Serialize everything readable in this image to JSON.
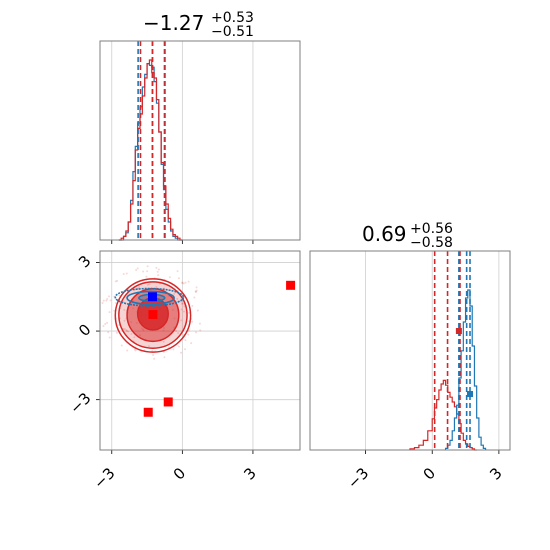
{
  "chart_data": {
    "type": "corner",
    "parameters": [
      "",
      ""
    ],
    "titles": [
      {
        "median": "−1.27",
        "plus": "+0.53",
        "minus": "−0.51"
      },
      {
        "median": "0.69",
        "plus": "+0.56",
        "minus": "−0.58"
      }
    ],
    "x_range": [
      -3.5,
      5.0
    ],
    "y_range": [
      -5.2,
      3.5
    ],
    "diag2_x_range": [
      -5.5,
      3.5
    ],
    "xticks": [
      -3,
      0,
      3
    ],
    "yticks": [
      -3,
      0,
      3
    ],
    "xtick_labels": [
      "−3",
      "0",
      "3"
    ],
    "ytick_labels": [
      "−3",
      "0",
      "3"
    ],
    "grid": true,
    "series": [
      {
        "name": "",
        "color": "#d62728"
      },
      {
        "name": "",
        "color": "#1f77b4"
      }
    ],
    "quantile_lines": {
      "param1": {
        "red": [
          -1.78,
          -0.74,
          -1.27
        ],
        "blue": [
          -1.88,
          -0.76,
          -1.27
        ]
      },
      "param2": {
        "red": [
          0.11,
          1.25,
          0.69
        ],
        "blue": [
          1.2,
          1.7,
          1.55
        ]
      }
    },
    "red_hist_param1": {
      "bins": [
        -2.7,
        -2.6,
        -2.5,
        -2.4,
        -2.3,
        -2.2,
        -2.1,
        -2.0,
        -1.9,
        -1.8,
        -1.7,
        -1.6,
        -1.5,
        -1.4,
        -1.3,
        -1.2,
        -1.1,
        -1.0,
        -0.9,
        -0.8,
        -0.7,
        -0.6,
        -0.5,
        -0.4,
        -0.3,
        -0.2,
        -0.1,
        0.0
      ],
      "counts": [
        0,
        0.01,
        0.02,
        0.05,
        0.1,
        0.2,
        0.33,
        0.5,
        0.62,
        0.7,
        0.8,
        0.9,
        0.98,
        1.0,
        0.93,
        0.9,
        0.78,
        0.6,
        0.43,
        0.3,
        0.2,
        0.12,
        0.06,
        0.03,
        0.02,
        0.01,
        0.0,
        0
      ]
    },
    "blue_hist_param1": {
      "bins": [
        -2.7,
        -2.6,
        -2.5,
        -2.4,
        -2.3,
        -2.2,
        -2.1,
        -2.0,
        -1.9,
        -1.8,
        -1.7,
        -1.6,
        -1.5,
        -1.4,
        -1.3,
        -1.2,
        -1.1,
        -1.0,
        -0.9,
        -0.8,
        -0.7,
        -0.6,
        -0.5,
        -0.4,
        -0.3,
        -0.2,
        -0.1,
        0.0
      ],
      "counts": [
        0,
        0.0,
        0.02,
        0.04,
        0.1,
        0.22,
        0.38,
        0.52,
        0.65,
        0.74,
        0.85,
        0.92,
        0.98,
        0.97,
        0.96,
        0.88,
        0.76,
        0.6,
        0.42,
        0.28,
        0.17,
        0.1,
        0.05,
        0.02,
        0.01,
        0.0,
        0,
        0
      ]
    },
    "red_hist_param2": {
      "bins": [
        -1.0,
        -0.8,
        -0.6,
        -0.4,
        -0.2,
        0.0,
        0.1,
        0.2,
        0.3,
        0.4,
        0.5,
        0.6,
        0.7,
        0.8,
        0.9,
        1.0,
        1.1,
        1.2,
        1.3,
        1.4,
        1.5,
        1.6,
        1.7,
        1.8,
        1.9,
        2.0
      ],
      "counts": [
        0.01,
        0.02,
        0.04,
        0.08,
        0.16,
        0.26,
        0.35,
        0.42,
        0.5,
        0.55,
        0.58,
        0.54,
        0.48,
        0.44,
        0.4,
        0.36,
        0.3,
        0.22,
        0.14,
        0.08,
        0.05,
        0.03,
        0.02,
        0.01,
        0.0,
        0
      ]
    },
    "blue_hist_param2": {
      "bins": [
        0.6,
        0.7,
        0.8,
        0.9,
        1.0,
        1.1,
        1.2,
        1.3,
        1.4,
        1.5,
        1.6,
        1.7,
        1.8,
        1.9,
        2.0,
        2.1,
        2.2,
        2.3,
        2.4
      ],
      "counts": [
        0.01,
        0.03,
        0.06,
        0.12,
        0.2,
        0.28,
        0.45,
        0.62,
        0.8,
        0.95,
        1.0,
        0.9,
        0.65,
        0.4,
        0.2,
        0.08,
        0.03,
        0.01,
        0
      ]
    },
    "red_contours": [
      {
        "cx": -1.25,
        "cy": 0.75,
        "rx": 0.65,
        "ry": 0.7,
        "fill_opacity": 0.85
      },
      {
        "cx": -1.25,
        "cy": 0.7,
        "rx": 1.1,
        "ry": 1.15,
        "fill_opacity": 0.5
      },
      {
        "cx": -1.25,
        "cy": 0.7,
        "rx": 1.45,
        "ry": 1.45,
        "fill_opacity": 0.2
      },
      {
        "cx": -1.25,
        "cy": 0.68,
        "rx": 1.6,
        "ry": 1.6,
        "fill_opacity": 0.0
      }
    ],
    "blue_contours": [
      {
        "cx": -1.3,
        "cy": 1.45,
        "rx": 0.55,
        "ry": 0.15
      },
      {
        "cx": -1.35,
        "cy": 1.45,
        "rx": 1.0,
        "ry": 0.28
      },
      {
        "cx": -1.4,
        "cy": 1.48,
        "rx": 1.45,
        "ry": 0.38
      }
    ],
    "markers": [
      {
        "x": -1.27,
        "y": 1.5,
        "color": "#0000ff"
      },
      {
        "x": -1.25,
        "y": 0.72,
        "color": "#ff0000"
      },
      {
        "x": 4.6,
        "y": 2.0,
        "color": "#ff0000"
      },
      {
        "x": -1.45,
        "y": -3.55,
        "color": "#ff0000"
      },
      {
        "x": -0.6,
        "y": -3.1,
        "color": "#ff0000"
      }
    ],
    "diag2_markers": [
      {
        "x": 1.2,
        "level": 0.85,
        "color": "#d62728"
      },
      {
        "x": 1.7,
        "level": 0.4,
        "color": "#1f77b4"
      }
    ]
  }
}
